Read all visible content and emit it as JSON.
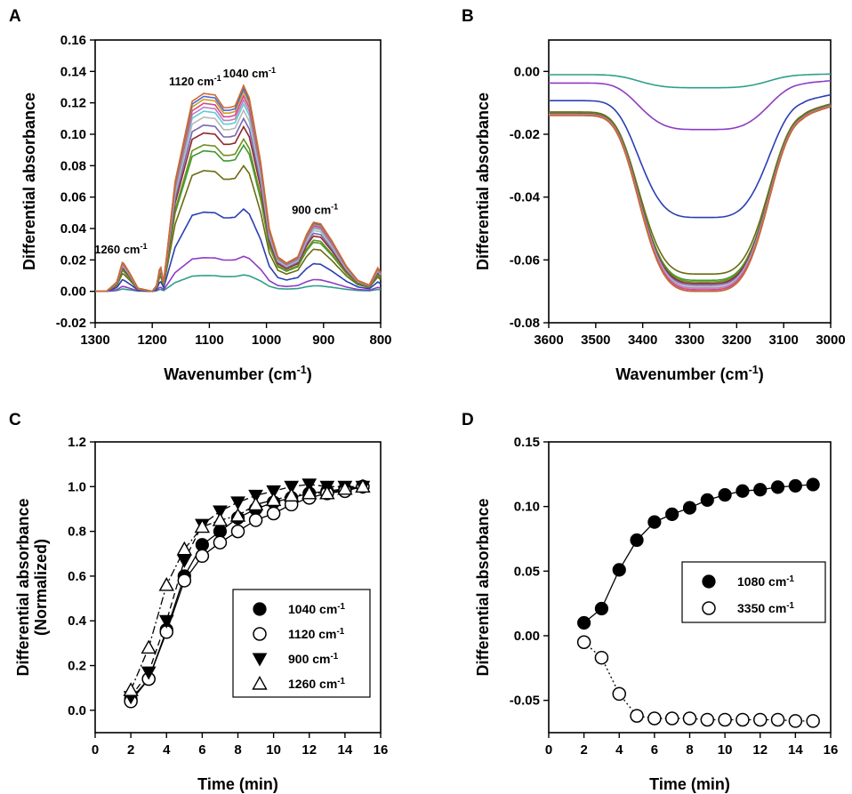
{
  "panels": [
    "A",
    "B",
    "C",
    "D"
  ],
  "chart_data": [
    {
      "panel": "A",
      "type": "line",
      "xlabel": "Wavenumber (cm-1)",
      "ylabel": "Differential absorbance",
      "xlim": [
        1300,
        800
      ],
      "ylim": [
        -0.02,
        0.16
      ],
      "x_reversed": true,
      "xticks": [
        "1300",
        "1200",
        "1100",
        "1000",
        "900",
        "800"
      ],
      "yticks": [
        "-0.02",
        "0.00",
        "0.02",
        "0.04",
        "0.06",
        "0.08",
        "0.10",
        "0.12",
        "0.14",
        "0.16"
      ],
      "annotations": [
        {
          "text": "1260 cm-1",
          "x": 1255,
          "y": 0.022
        },
        {
          "text": "1120 cm-1",
          "x": 1125,
          "y": 0.129
        },
        {
          "text": "1040 cm-1",
          "x": 1030,
          "y": 0.134
        },
        {
          "text": "900 cm-1",
          "x": 915,
          "y": 0.047
        }
      ],
      "profile_x": [
        1300,
        1280,
        1262,
        1252,
        1240,
        1225,
        1200,
        1192,
        1186,
        1180,
        1160,
        1130,
        1110,
        1090,
        1075,
        1065,
        1055,
        1040,
        1030,
        1010,
        995,
        980,
        965,
        945,
        930,
        918,
        905,
        885,
        860,
        840,
        820,
        805,
        800
      ],
      "profile_y": [
        0.0,
        0.0,
        0.006,
        0.019,
        0.012,
        0.002,
        0.0,
        0.004,
        0.017,
        0.006,
        0.07,
        0.121,
        0.126,
        0.125,
        0.117,
        0.117,
        0.118,
        0.131,
        0.123,
        0.082,
        0.04,
        0.022,
        0.018,
        0.022,
        0.036,
        0.044,
        0.043,
        0.032,
        0.016,
        0.007,
        0.004,
        0.015,
        0.012
      ],
      "series_scales": [
        0.08,
        0.17,
        0.4,
        0.61,
        0.71,
        0.74,
        0.8,
        0.84,
        0.88,
        0.91,
        0.93,
        0.95,
        0.97,
        0.985,
        1.0
      ],
      "series_colors": [
        "#2e9e8a",
        "#8e3bc4",
        "#2a3fb3",
        "#6b6b10",
        "#3e9a2e",
        "#6e8f1f",
        "#8b2a2a",
        "#7a64b0",
        "#b8b8b8",
        "#5ad0d0",
        "#c47ac4",
        "#d14a8a",
        "#c9a020",
        "#4a6ad9",
        "#d26a2a"
      ]
    },
    {
      "panel": "B",
      "type": "line",
      "xlabel": "Wavenumber (cm-1)",
      "ylabel": "Differential absorbance",
      "xlim": [
        3600,
        3000
      ],
      "ylim": [
        -0.08,
        0.01
      ],
      "x_reversed": true,
      "xticks": [
        "3600",
        "3500",
        "3400",
        "3300",
        "3200",
        "3100",
        "3000"
      ],
      "yticks": [
        "-0.08",
        "-0.06",
        "-0.04",
        "-0.02",
        "0.00"
      ],
      "series_minima": [
        -0.0052,
        -0.0185,
        -0.0465,
        -0.0645,
        -0.0665,
        -0.067,
        -0.0675,
        -0.068,
        -0.0685,
        -0.069,
        -0.069,
        -0.0695,
        -0.07,
        -0.07,
        -0.07
      ],
      "series_colors": [
        "#2e9e8a",
        "#8e3bc4",
        "#2a3fb3",
        "#6b6b10",
        "#3e9a2e",
        "#6e8f1f",
        "#8b2a2a",
        "#7a64b0",
        "#b8b8b8",
        "#5ad0d0",
        "#c47ac4",
        "#d14a8a",
        "#c9a020",
        "#4a6ad9",
        "#d26a2a"
      ]
    },
    {
      "panel": "C",
      "type": "scatter",
      "xlabel": "Time (min)",
      "ylabel": "Differential absorbance",
      "ylabel2": "(Normalized)",
      "xlim": [
        0,
        16
      ],
      "ylim": [
        -0.1,
        1.2
      ],
      "xticks": [
        "0",
        "2",
        "4",
        "6",
        "8",
        "10",
        "12",
        "14",
        "16"
      ],
      "yticks": [
        "0.0",
        "0.2",
        "0.4",
        "0.6",
        "0.8",
        "1.0",
        "1.2"
      ],
      "legend_position": "lower-right",
      "x": [
        2,
        3,
        4,
        5,
        6,
        7,
        8,
        9,
        10,
        11,
        12,
        13,
        14,
        15
      ],
      "series": [
        {
          "name": "1040 cm-1",
          "marker": "filled-circle",
          "line": "solid",
          "values": [
            0.05,
            0.14,
            0.36,
            0.6,
            0.74,
            0.8,
            0.86,
            0.9,
            0.93,
            0.95,
            0.97,
            0.98,
            0.99,
            1.0
          ]
        },
        {
          "name": "1120 cm-1",
          "marker": "open-circle",
          "line": "solid",
          "values": [
            0.04,
            0.14,
            0.35,
            0.58,
            0.69,
            0.75,
            0.8,
            0.85,
            0.88,
            0.92,
            0.95,
            0.97,
            0.98,
            1.0
          ]
        },
        {
          "name": "900 cm-1",
          "marker": "filled-triangle-down",
          "line": "dashed",
          "values": [
            0.06,
            0.17,
            0.4,
            0.67,
            0.83,
            0.89,
            0.93,
            0.96,
            0.98,
            1.0,
            1.01,
            1.0,
            1.0,
            1.0
          ]
        },
        {
          "name": "1260 cm-1",
          "marker": "open-triangle-up",
          "line": "dashdot",
          "values": [
            0.09,
            0.28,
            0.56,
            0.72,
            0.82,
            0.85,
            0.87,
            0.92,
            0.94,
            0.96,
            0.97,
            0.97,
            0.99,
            1.0
          ]
        }
      ],
      "legend_entries": [
        "1040 cm-1",
        "1120 cm-1",
        "900 cm-1",
        "1260 cm-1"
      ]
    },
    {
      "panel": "D",
      "type": "scatter",
      "xlabel": "Time (min)",
      "ylabel": "Differential absorbance",
      "xlim": [
        0,
        16
      ],
      "ylim": [
        -0.075,
        0.15
      ],
      "xticks": [
        "0",
        "2",
        "4",
        "6",
        "8",
        "10",
        "12",
        "14",
        "16"
      ],
      "yticks": [
        "-0.05",
        "0.00",
        "0.05",
        "0.10",
        "0.15"
      ],
      "legend_position": "middle-right",
      "x": [
        2,
        3,
        4,
        5,
        6,
        7,
        8,
        9,
        10,
        11,
        12,
        13,
        14,
        15
      ],
      "series": [
        {
          "name": "1080 cm-1",
          "marker": "filled-circle",
          "line": "solid",
          "values": [
            0.01,
            0.021,
            0.051,
            0.074,
            0.088,
            0.094,
            0.099,
            0.105,
            0.109,
            0.112,
            0.113,
            0.115,
            0.116,
            0.117
          ]
        },
        {
          "name": "3350 cm-1",
          "marker": "open-circle",
          "line": "dotted",
          "values": [
            -0.005,
            -0.017,
            -0.045,
            -0.062,
            -0.064,
            -0.064,
            -0.064,
            -0.065,
            -0.065,
            -0.065,
            -0.065,
            -0.065,
            -0.066,
            -0.066
          ]
        }
      ],
      "legend_entries": [
        "1080 cm-1",
        "3350 cm-1"
      ]
    }
  ]
}
